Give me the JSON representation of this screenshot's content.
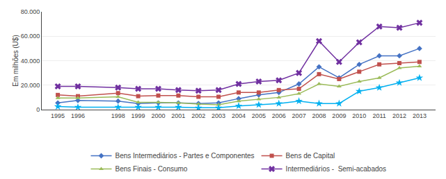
{
  "chart_data": {
    "type": "line",
    "ylabel": "Em milhões (U$)",
    "x": [
      1995,
      1996,
      1998,
      1999,
      2000,
      2001,
      2002,
      2003,
      2004,
      2005,
      2006,
      2007,
      2008,
      2009,
      2010,
      2011,
      2012,
      2013
    ],
    "series": [
      {
        "name": "Bens Intermediários - Partes e Componentes",
        "color": "#4472C4",
        "marker": "diamond",
        "values": [
          5500,
          7500,
          7000,
          5000,
          5500,
          5500,
          5000,
          5500,
          9000,
          12000,
          14000,
          21000,
          35000,
          26000,
          37000,
          44000,
          44000,
          50000
        ]
      },
      {
        "name": "Bens de Capital",
        "color": "#C0504D",
        "marker": "square",
        "values": [
          12000,
          11000,
          13500,
          11000,
          11500,
          11500,
          10500,
          10500,
          14000,
          14000,
          16000,
          17000,
          29000,
          25000,
          31000,
          37000,
          38000,
          39000
        ]
      },
      {
        "name": "Bens Finais - Consumo",
        "color": "#9BBB59",
        "marker": "triangle-up",
        "values": [
          9500,
          9500,
          10500,
          6000,
          6000,
          5500,
          4500,
          4000,
          7000,
          8500,
          10000,
          13000,
          21000,
          19000,
          23000,
          26000,
          34000,
          35500
        ]
      },
      {
        "name": "Intermediários -  Semi-acabados",
        "color": "#7030A0",
        "marker": "x",
        "values": [
          19000,
          19000,
          18000,
          17000,
          17000,
          16000,
          15500,
          16000,
          21000,
          23000,
          24000,
          30000,
          56000,
          39000,
          55000,
          68000,
          67000,
          71000
        ]
      },
      {
        "color": "#00B0F0",
        "marker": "star",
        "values": [
          2500,
          2000,
          2000,
          2000,
          2000,
          2000,
          1500,
          1500,
          3000,
          4000,
          5000,
          7000,
          5000,
          5000,
          15000,
          18000,
          22000,
          26000
        ]
      }
    ],
    "xlim": [
      1994.2,
      2013.8
    ],
    "xticks": [
      1995,
      1996,
      1998,
      1999,
      2000,
      2001,
      2002,
      2003,
      2004,
      2005,
      2006,
      2007,
      2008,
      2009,
      2010,
      2011,
      2012,
      2013
    ],
    "ylim": [
      0,
      80000
    ],
    "yticks": [
      0,
      {
        "value": 20000,
        "label": "20.000"
      },
      {
        "value": 40000,
        "label": "40.000"
      },
      {
        "value": 60000,
        "label": "60.000"
      },
      {
        "value": 80000,
        "label": "80.000"
      }
    ],
    "grid": true,
    "legend": "bottom"
  }
}
